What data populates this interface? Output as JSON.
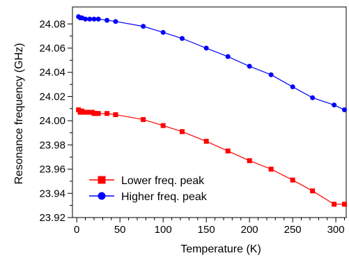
{
  "chart_data": {
    "type": "line",
    "xlabel": "Temperature (K)",
    "ylabel": "Resonance frequency (GHz)",
    "xlim": [
      -5,
      312
    ],
    "ylim": [
      23.92,
      24.094
    ],
    "x_ticks": [
      0,
      50,
      100,
      150,
      200,
      250,
      300
    ],
    "x_tick_labels": [
      "0",
      "50",
      "100",
      "150",
      "200",
      "250",
      "300"
    ],
    "y_ticks": [
      23.92,
      23.94,
      23.96,
      23.98,
      24.0,
      24.02,
      24.04,
      24.06,
      24.08
    ],
    "y_tick_labels": [
      "23.92",
      "23.94",
      "23.96",
      "23.98",
      "24.00",
      "24.02",
      "24.04",
      "24.06",
      "24.08"
    ],
    "grid": false,
    "legend_position": "bottom-left",
    "series": [
      {
        "name": "Lower freq. peak",
        "color": "#ff0000",
        "marker": "square",
        "x": [
          2,
          4,
          6,
          8,
          10,
          12,
          14,
          16,
          18,
          20,
          22,
          25,
          35,
          45,
          77,
          100,
          122,
          150,
          175,
          200,
          225,
          250,
          273,
          298,
          310
        ],
        "y": [
          24.009,
          24.007,
          24.008,
          24.007,
          24.007,
          24.007,
          24.007,
          24.007,
          24.007,
          24.006,
          24.006,
          24.006,
          24.006,
          24.005,
          24.001,
          23.996,
          23.991,
          23.983,
          23.975,
          23.967,
          23.96,
          23.951,
          23.942,
          23.931,
          23.931
        ]
      },
      {
        "name": "Higher freq. peak",
        "color": "#0000ff",
        "marker": "circle",
        "x": [
          2,
          4,
          6,
          10,
          15,
          20,
          25,
          35,
          45,
          77,
          100,
          122,
          150,
          175,
          200,
          225,
          250,
          273,
          298,
          310
        ],
        "y": [
          24.086,
          24.085,
          24.085,
          24.084,
          24.084,
          24.084,
          24.084,
          24.083,
          24.082,
          24.078,
          24.073,
          24.068,
          24.06,
          24.053,
          24.045,
          24.038,
          24.028,
          24.019,
          24.013,
          24.009
        ]
      }
    ]
  }
}
